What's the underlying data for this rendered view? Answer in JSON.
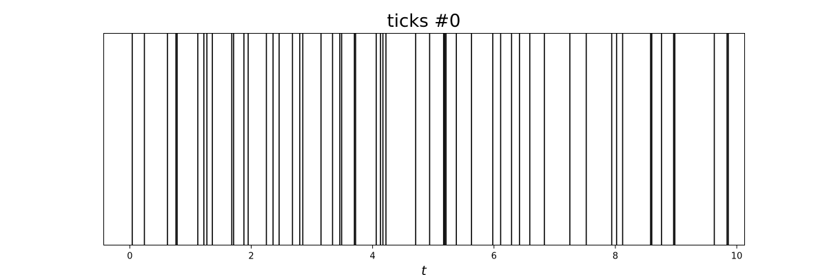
{
  "chart_data": {
    "type": "event-raster",
    "title": "ticks #0",
    "xlabel": "t",
    "ylabel": "",
    "xlim": [
      -0.43,
      10.13
    ],
    "xticks": [
      0,
      2,
      4,
      6,
      8,
      10
    ],
    "grid": false,
    "legend": "none",
    "line_color": "#000000",
    "events": [
      0.04,
      0.24,
      0.62,
      0.76,
      0.78,
      1.12,
      1.22,
      1.27,
      1.36,
      1.68,
      1.71,
      1.88,
      1.95,
      2.25,
      2.36,
      2.46,
      2.68,
      2.8,
      2.85,
      3.15,
      3.34,
      3.46,
      3.49,
      3.7,
      3.72,
      4.06,
      4.13,
      4.17,
      4.22,
      4.71,
      4.94,
      5.17,
      5.19,
      5.21,
      5.38,
      5.63,
      5.98,
      6.11,
      6.29,
      6.42,
      6.59,
      6.83,
      7.25,
      7.52,
      7.94,
      8.02,
      8.12,
      8.58,
      8.6,
      8.76,
      8.96,
      8.98,
      9.63,
      9.84,
      9.86
    ]
  }
}
